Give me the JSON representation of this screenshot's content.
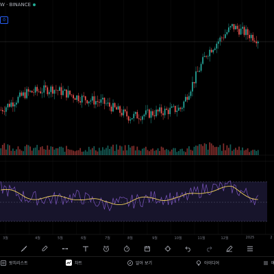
{
  "header": {
    "pair_title": "W · BINANCE",
    "indicator_badge": "0"
  },
  "x_axis": {
    "labels": [
      "3월",
      "4월",
      "5월",
      "6월",
      "7월",
      "8월",
      "9월",
      "10월",
      "11월",
      "12월",
      "2025",
      "2"
    ]
  },
  "drawing_toolbar": {
    "tools": [
      "ruler-icon",
      "pencil-icon",
      "trend-line-icon",
      "text-icon",
      "alert-clock-icon",
      "timer-icon",
      "calendar-icon",
      "crosshair-icon",
      "undo-icon",
      "redo-icon",
      "pen-icon",
      "drawing-list-icon"
    ]
  },
  "bottom_nav": {
    "watchlist_label": "왓치리스트",
    "chart_label": "차트",
    "explore_label": "알아 보기",
    "ideas_label": "아이디어",
    "menu_label": "메"
  },
  "colors": {
    "up_candle": "#26a69a",
    "down_candle": "#ef5350",
    "rsi_line": "#7e57c2",
    "rsi_ma_line": "#f4d35e",
    "rsi_band_fill": "#1a1730",
    "accent": "#2962ff"
  },
  "chart_data": [
    {
      "type": "candlestick",
      "title": "",
      "categories": [
        "3월",
        "4월",
        "5월",
        "6월",
        "7월",
        "8월",
        "9월",
        "10월",
        "11월",
        "12월",
        "2025"
      ],
      "series": [
        {
          "values": [
            0.46,
            0.58,
            0.61,
            0.55,
            0.51,
            0.41,
            0.44,
            0.47,
            0.86,
            1.05,
            0.96
          ]
        }
      ],
      "grid": true,
      "y_tick_labels": []
    },
    {
      "type": "bar",
      "title": "",
      "values": [
        0.7,
        0.55,
        0.5,
        0.45,
        0.5,
        0.6,
        0.45,
        0.4,
        0.7,
        0.55,
        0.4
      ]
    },
    {
      "type": "line",
      "title": "",
      "categories": [
        "3월",
        "4월",
        "5월",
        "6월",
        "7월",
        "8월",
        "9월",
        "10월",
        "11월",
        "12월",
        "2025"
      ],
      "series": [
        {
          "values": [
            64,
            48,
            46,
            50,
            38,
            41,
            49,
            46,
            63,
            64,
            45
          ]
        },
        {
          "values": [
            60,
            50,
            47,
            49,
            40,
            42,
            48,
            47,
            60,
            62,
            47
          ]
        }
      ],
      "reference_lines": [
        70,
        50,
        30
      ],
      "grid": true
    }
  ]
}
